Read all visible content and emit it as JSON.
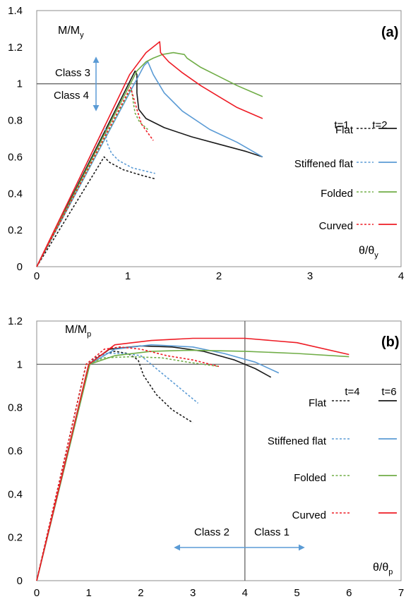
{
  "chart_data": [
    {
      "type": "line",
      "panel_label": "(a)",
      "ylabel_base": "M/M",
      "ylabel_sub": "y",
      "xlabel_base": "θ/θ",
      "xlabel_sub": "y",
      "xlim": [
        0,
        4
      ],
      "ylim": [
        0,
        1.4
      ],
      "xticks": [
        "0",
        "1",
        "2",
        "3",
        "4"
      ],
      "yticks": [
        "0",
        "0.2",
        "0.4",
        "0.6",
        "0.8",
        "1",
        "1.2",
        "1.4"
      ],
      "hline_y": 1,
      "class_labels": {
        "upper": "Class 3",
        "lower": "Class 4"
      },
      "legend": {
        "header_left": "t=1",
        "header_right": "t=2",
        "rows": [
          "Flat",
          "Stiffened flat",
          "Folded",
          "Curved"
        ]
      },
      "colors": {
        "Flat": "#1a1a1a",
        "Stiffened flat": "#5b9bd5",
        "Folded": "#70ad47",
        "Curved": "#ee1c25",
        "arrow": "#5b9bd5",
        "axis": "#595959"
      },
      "series": [
        {
          "name": "Flat",
          "t": "t=1",
          "dashed": true,
          "points": [
            [
              0,
              0
            ],
            [
              0.74,
              0.6
            ],
            [
              0.8,
              0.57
            ],
            [
              0.95,
              0.53
            ],
            [
              1.15,
              0.5
            ],
            [
              1.3,
              0.48
            ]
          ]
        },
        {
          "name": "Flat",
          "t": "t=2",
          "dashed": false,
          "points": [
            [
              0,
              0
            ],
            [
              1.08,
              1.07
            ],
            [
              1.1,
              1.05
            ],
            [
              1.1,
              0.95
            ],
            [
              1.12,
              0.86
            ],
            [
              1.2,
              0.81
            ],
            [
              1.4,
              0.76
            ],
            [
              1.7,
              0.71
            ],
            [
              2.0,
              0.67
            ],
            [
              2.3,
              0.63
            ],
            [
              2.48,
              0.6
            ]
          ]
        },
        {
          "name": "Stiffened flat",
          "t": "t=1",
          "dashed": true,
          "points": [
            [
              0,
              0
            ],
            [
              0.75,
              0.77
            ],
            [
              0.77,
              0.68
            ],
            [
              0.82,
              0.62
            ],
            [
              0.9,
              0.58
            ],
            [
              1.05,
              0.54
            ],
            [
              1.3,
              0.51
            ]
          ]
        },
        {
          "name": "Stiffened flat",
          "t": "t=2",
          "dashed": false,
          "points": [
            [
              0,
              0
            ],
            [
              1.18,
              1.1
            ],
            [
              1.22,
              1.12
            ],
            [
              1.28,
              1.05
            ],
            [
              1.4,
              0.95
            ],
            [
              1.6,
              0.85
            ],
            [
              1.9,
              0.75
            ],
            [
              2.2,
              0.68
            ],
            [
              2.48,
              0.6
            ]
          ]
        },
        {
          "name": "Folded",
          "t": "t=1",
          "dashed": true,
          "points": [
            [
              0,
              0
            ],
            [
              1.02,
              0.96
            ],
            [
              1.04,
              0.97
            ],
            [
              1.06,
              0.9
            ],
            [
              1.08,
              0.84
            ],
            [
              1.13,
              0.79
            ],
            [
              1.22,
              0.75
            ]
          ]
        },
        {
          "name": "Folded",
          "t": "t=2",
          "dashed": false,
          "points": [
            [
              0,
              0
            ],
            [
              1.1,
              1.07
            ],
            [
              1.2,
              1.12
            ],
            [
              1.28,
              1.14
            ],
            [
              1.38,
              1.16
            ],
            [
              1.5,
              1.17
            ],
            [
              1.62,
              1.16
            ],
            [
              1.65,
              1.14
            ],
            [
              1.8,
              1.09
            ],
            [
              2.0,
              1.04
            ],
            [
              2.2,
              0.99
            ],
            [
              2.48,
              0.93
            ]
          ]
        },
        {
          "name": "Curved",
          "t": "t=1",
          "dashed": true,
          "points": [
            [
              0,
              0
            ],
            [
              1.03,
              0.98
            ],
            [
              1.06,
              0.93
            ],
            [
              1.1,
              0.86
            ],
            [
              1.15,
              0.78
            ],
            [
              1.28,
              0.69
            ]
          ]
        },
        {
          "name": "Curved",
          "t": "t=2",
          "dashed": false,
          "points": [
            [
              0,
              0
            ],
            [
              1.02,
              1.05
            ],
            [
              1.2,
              1.17
            ],
            [
              1.35,
              1.23
            ],
            [
              1.36,
              1.17
            ],
            [
              1.45,
              1.12
            ],
            [
              1.6,
              1.06
            ],
            [
              1.8,
              0.99
            ],
            [
              2.0,
              0.93
            ],
            [
              2.2,
              0.87
            ],
            [
              2.48,
              0.81
            ]
          ]
        }
      ]
    },
    {
      "type": "line",
      "panel_label": "(b)",
      "ylabel_base": "M/M",
      "ylabel_sub": "p",
      "xlabel_base": "θ/θ",
      "xlabel_sub": "p",
      "xlim": [
        0,
        7
      ],
      "ylim": [
        0,
        1.2
      ],
      "xticks": [
        "0",
        "1",
        "2",
        "3",
        "4",
        "5",
        "6",
        "7"
      ],
      "yticks": [
        "0",
        "0.2",
        "0.4",
        "0.6",
        "0.8",
        "1",
        "1.2"
      ],
      "hline_y": 1,
      "vline_x": 4,
      "class_labels": {
        "left": "Class 2",
        "right": "Class 1"
      },
      "legend": {
        "header_left": "t=4",
        "header_right": "t=6",
        "rows": [
          "Flat",
          "Stiffened flat",
          "Folded",
          "Curved"
        ]
      },
      "colors": {
        "Flat": "#1a1a1a",
        "Stiffened flat": "#5b9bd5",
        "Folded": "#70ad47",
        "Curved": "#ee1c25",
        "arrow": "#5b9bd5",
        "axis": "#595959"
      },
      "series": [
        {
          "name": "Flat",
          "t": "t=4",
          "dashed": true,
          "points": [
            [
              0,
              0
            ],
            [
              0.95,
              1.0
            ],
            [
              1.2,
              1.04
            ],
            [
              1.5,
              1.06
            ],
            [
              1.75,
              1.05
            ],
            [
              1.95,
              1.02
            ],
            [
              2.05,
              0.95
            ],
            [
              2.3,
              0.86
            ],
            [
              2.6,
              0.79
            ],
            [
              3.0,
              0.73
            ]
          ]
        },
        {
          "name": "Flat",
          "t": "t=6",
          "dashed": false,
          "points": [
            [
              0,
              0
            ],
            [
              1.0,
              1.0
            ],
            [
              1.4,
              1.07
            ],
            [
              2.0,
              1.085
            ],
            [
              2.6,
              1.08
            ],
            [
              3.2,
              1.06
            ],
            [
              3.8,
              1.02
            ],
            [
              4.2,
              0.98
            ],
            [
              4.5,
              0.94
            ]
          ]
        },
        {
          "name": "Stiffened flat",
          "t": "t=4",
          "dashed": true,
          "points": [
            [
              0,
              0
            ],
            [
              0.95,
              1.0
            ],
            [
              1.3,
              1.05
            ],
            [
              1.7,
              1.05
            ],
            [
              2.0,
              1.04
            ],
            [
              2.3,
              0.98
            ],
            [
              2.7,
              0.9
            ],
            [
              3.1,
              0.82
            ]
          ]
        },
        {
          "name": "Stiffened flat",
          "t": "t=6",
          "dashed": false,
          "points": [
            [
              0,
              0
            ],
            [
              1.02,
              1.0
            ],
            [
              1.5,
              1.07
            ],
            [
              2.2,
              1.09
            ],
            [
              3.0,
              1.08
            ],
            [
              3.6,
              1.05
            ],
            [
              4.2,
              1.01
            ],
            [
              4.65,
              0.96
            ]
          ]
        },
        {
          "name": "Folded",
          "t": "t=4",
          "dashed": true,
          "points": [
            [
              0,
              0
            ],
            [
              0.95,
              1.0
            ],
            [
              1.3,
              1.03
            ],
            [
              1.8,
              1.035
            ],
            [
              2.4,
              1.03
            ],
            [
              2.9,
              1.01
            ],
            [
              3.5,
              0.99
            ]
          ]
        },
        {
          "name": "Folded",
          "t": "t=6",
          "dashed": false,
          "points": [
            [
              0,
              0
            ],
            [
              1.02,
              1.0
            ],
            [
              1.5,
              1.04
            ],
            [
              2.2,
              1.06
            ],
            [
              3.0,
              1.065
            ],
            [
              4.0,
              1.06
            ],
            [
              5.0,
              1.05
            ],
            [
              6.0,
              1.035
            ]
          ]
        },
        {
          "name": "Curved",
          "t": "t=4",
          "dashed": true,
          "points": [
            [
              0,
              0
            ],
            [
              0.95,
              1.0
            ],
            [
              1.3,
              1.07
            ],
            [
              1.6,
              1.08
            ],
            [
              2.0,
              1.07
            ],
            [
              2.5,
              1.04
            ],
            [
              3.0,
              1.02
            ],
            [
              3.5,
              0.99
            ]
          ]
        },
        {
          "name": "Curved",
          "t": "t=6",
          "dashed": false,
          "points": [
            [
              0,
              0
            ],
            [
              1.0,
              1.0
            ],
            [
              1.5,
              1.09
            ],
            [
              2.2,
              1.11
            ],
            [
              3.0,
              1.12
            ],
            [
              4.0,
              1.12
            ],
            [
              5.0,
              1.1
            ],
            [
              6.0,
              1.045
            ]
          ]
        }
      ]
    }
  ]
}
